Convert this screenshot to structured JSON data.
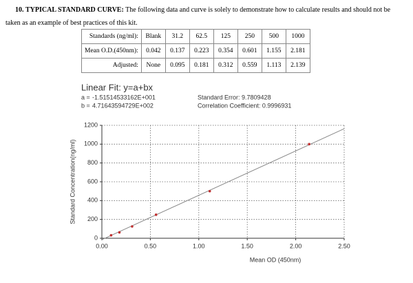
{
  "header": {
    "number": "10.",
    "title": "TYPICAL STANDARD CURVE:",
    "text": "The following data and curve is solely to demonstrate how to calculate results and should not be taken as an example of best practices of this kit."
  },
  "table": {
    "rows": [
      [
        "Standards (ng/ml):",
        "Blank",
        "31.2",
        "62.5",
        "125",
        "250",
        "500",
        "1000"
      ],
      [
        "Mean O.D.(450nm):",
        "0.042",
        "0.137",
        "0.223",
        "0.354",
        "0.601",
        "1.155",
        "2.181"
      ],
      [
        "Adjusted:",
        "None",
        "0.095",
        "0.181",
        "0.312",
        "0.559",
        "1.113",
        "2.139"
      ]
    ]
  },
  "chart_data": {
    "type": "scatter",
    "title": "Linear Fit: y=a+bx",
    "fit": [
      {
        "name": "a =",
        "value": "-1.51514533162E+001"
      },
      {
        "name": "b =",
        "value": "4.71643594729E+002"
      }
    ],
    "stats": [
      "Standard Error: 9.7809428",
      "Correlation Coefficient: 0.9996931"
    ],
    "x_label": "Mean OD (450nm)",
    "y_label": "Standard Concentration(ng/ml)",
    "x": [
      0.095,
      0.181,
      0.312,
      0.559,
      1.113,
      2.139
    ],
    "values": [
      31.2,
      62.5,
      125,
      250,
      500,
      1000
    ],
    "color": "#c03030",
    "line_color": "#888888",
    "xlim": [
      0,
      2.5
    ],
    "ylim": [
      0,
      1200
    ],
    "xticks": [
      {
        "value": 0,
        "label": "0.00"
      },
      {
        "value": 0.5,
        "label": "0.50"
      },
      {
        "value": 1,
        "label": "1.00"
      },
      {
        "value": 1.5,
        "label": "1.50"
      },
      {
        "value": 2,
        "label": "2.00"
      },
      {
        "value": 2.5,
        "label": "2.50"
      }
    ],
    "yticks": [
      0,
      200,
      400,
      600,
      800,
      1000,
      1200
    ],
    "grid": true
  }
}
